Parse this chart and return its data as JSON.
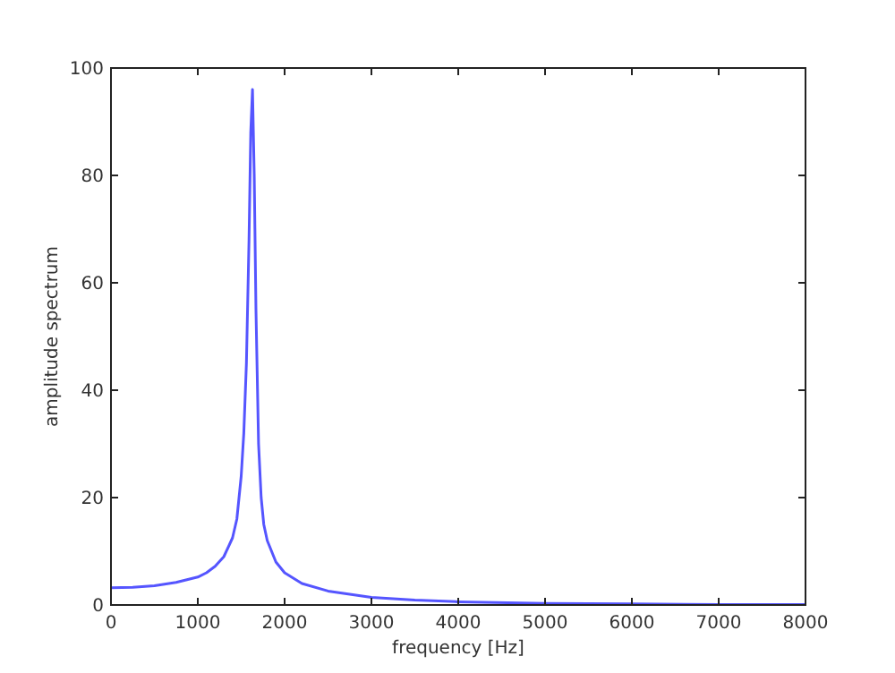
{
  "chart_data": {
    "type": "line",
    "xlabel": "frequency [Hz]",
    "ylabel": "amplitude spectrum",
    "xlim": [
      0,
      8000
    ],
    "ylim": [
      0,
      100
    ],
    "xticks": [
      0,
      1000,
      2000,
      3000,
      4000,
      5000,
      6000,
      7000,
      8000
    ],
    "yticks": [
      0,
      20,
      40,
      60,
      80,
      100
    ],
    "marker": "none",
    "line_style": "solid",
    "series": [
      {
        "color": "#5555ff",
        "x": [
          0,
          250,
          500,
          750,
          1000,
          1100,
          1200,
          1300,
          1400,
          1450,
          1500,
          1530,
          1560,
          1590,
          1610,
          1630,
          1650,
          1670,
          1700,
          1730,
          1760,
          1800,
          1900,
          2000,
          2200,
          2500,
          3000,
          3500,
          4000,
          5000,
          6000,
          7000,
          8000
        ],
        "values": [
          3.2,
          3.3,
          3.6,
          4.2,
          5.2,
          6,
          7.2,
          9,
          12.5,
          16,
          24,
          32,
          45,
          68,
          88,
          96,
          80,
          55,
          30,
          20,
          15,
          12,
          8,
          6,
          4,
          2.6,
          1.4,
          0.9,
          0.6,
          0.3,
          0.2,
          0.1,
          0.1
        ]
      }
    ]
  }
}
